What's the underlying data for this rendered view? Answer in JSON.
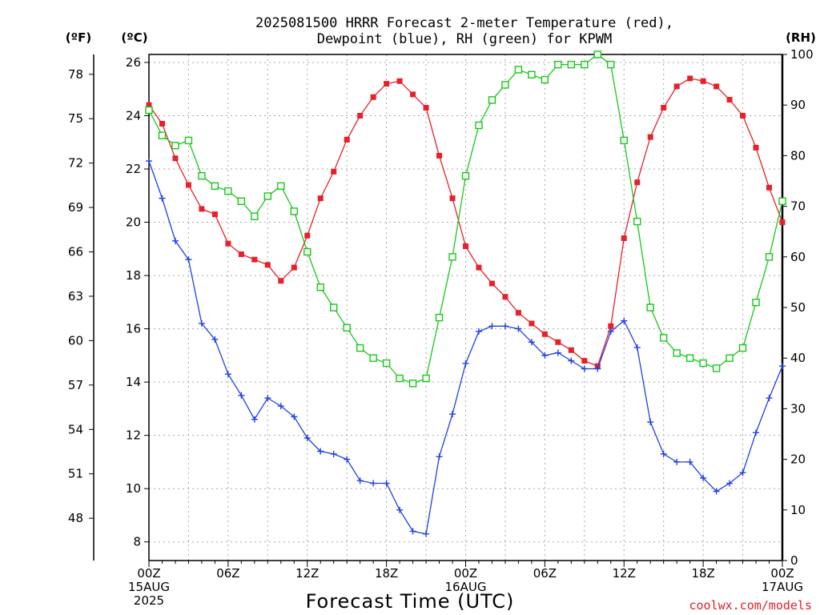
{
  "chart_data": {
    "type": "line",
    "title": "2025081500 HRRR Forecast 2-meter Temperature (red),",
    "title_line2": "Dewpoint (blue), RH (green) for KPWM",
    "xlabel": "Forecast Time (UTC)",
    "credit": "coolwx.com/models",
    "unit_labels": {
      "fahrenheit": "(ºF)",
      "celsius": "(ºC)",
      "rh": "(RH)"
    },
    "x_tick_labels": [
      {
        "hour": 0,
        "lines": [
          "00Z",
          "15AUG",
          "2025"
        ]
      },
      {
        "hour": 6,
        "lines": [
          "06Z"
        ]
      },
      {
        "hour": 12,
        "lines": [
          "12Z"
        ]
      },
      {
        "hour": 18,
        "lines": [
          "18Z"
        ]
      },
      {
        "hour": 24,
        "lines": [
          "00Z",
          "16AUG"
        ]
      },
      {
        "hour": 30,
        "lines": [
          "06Z"
        ]
      },
      {
        "hour": 36,
        "lines": [
          "12Z"
        ]
      },
      {
        "hour": 42,
        "lines": [
          "18Z"
        ]
      },
      {
        "hour": 48,
        "lines": [
          "00Z",
          "17AUG"
        ]
      }
    ],
    "xlim_hours": [
      0,
      48
    ],
    "y_celsius_ticks": [
      "8",
      "10",
      "12",
      "14",
      "16",
      "18",
      "20",
      "22",
      "24",
      "26"
    ],
    "ylim_celsius": [
      7.3,
      26.3
    ],
    "y_fahrenheit_ticks": [
      "48",
      "51",
      "54",
      "57",
      "60",
      "63",
      "66",
      "69",
      "72",
      "75",
      "78"
    ],
    "y_rh_ticks": [
      "0",
      "10",
      "20",
      "30",
      "40",
      "50",
      "60",
      "70",
      "80",
      "90",
      "100"
    ],
    "ylim_rh": [
      0,
      100
    ],
    "grid": true,
    "x_hours": [
      0,
      1,
      2,
      3,
      4,
      5,
      6,
      7,
      8,
      9,
      10,
      11,
      12,
      13,
      14,
      15,
      16,
      17,
      18,
      19,
      20,
      21,
      22,
      23,
      24,
      25,
      26,
      27,
      28,
      29,
      30,
      31,
      32,
      33,
      34,
      35,
      36,
      37,
      38,
      39,
      40,
      41,
      42,
      43,
      44,
      45,
      46,
      47,
      48
    ],
    "series": [
      {
        "name": "Temperature",
        "axis": "celsius",
        "color": "#e8202a",
        "marker": "filled-square",
        "values": [
          24.4,
          23.7,
          22.4,
          21.4,
          20.5,
          20.3,
          19.2,
          18.8,
          18.6,
          18.4,
          17.8,
          18.3,
          19.5,
          20.9,
          21.9,
          23.1,
          24.0,
          24.7,
          25.2,
          25.3,
          24.8,
          24.3,
          22.5,
          20.9,
          19.1,
          18.3,
          17.7,
          17.2,
          16.6,
          16.2,
          15.8,
          15.5,
          15.2,
          14.8,
          14.6,
          16.1,
          19.4,
          21.5,
          23.2,
          24.3,
          25.1,
          25.4,
          25.3,
          25.1,
          24.6,
          24.0,
          22.8,
          21.3,
          20.0
        ]
      },
      {
        "name": "Dewpoint",
        "axis": "celsius",
        "color": "#2040e0",
        "marker": "plus",
        "values": [
          22.3,
          20.9,
          19.3,
          18.6,
          16.2,
          15.6,
          14.3,
          13.5,
          12.6,
          13.4,
          13.1,
          12.7,
          11.9,
          11.4,
          11.3,
          11.1,
          10.3,
          10.2,
          10.2,
          9.2,
          8.4,
          8.3,
          11.2,
          12.8,
          14.7,
          15.9,
          16.1,
          16.1,
          16.0,
          15.5,
          15.0,
          15.1,
          14.8,
          14.5,
          14.5,
          15.9,
          16.3,
          15.3,
          12.5,
          11.3,
          11.0,
          11.0,
          10.4,
          9.9,
          10.2,
          10.6,
          12.1,
          13.4,
          14.6
        ]
      },
      {
        "name": "RH",
        "axis": "rh",
        "color": "#18c818",
        "marker": "open-square",
        "values": [
          89,
          84,
          82,
          83,
          76,
          74,
          73,
          71,
          68,
          72,
          74,
          69,
          61,
          54,
          50,
          46,
          42,
          40,
          39,
          36,
          35,
          36,
          48,
          60,
          76,
          86,
          91,
          94,
          97,
          96,
          95,
          98,
          98,
          98,
          100,
          98,
          83,
          67,
          50,
          44,
          41,
          40,
          39,
          38,
          40,
          42,
          51,
          60,
          71
        ]
      }
    ]
  }
}
